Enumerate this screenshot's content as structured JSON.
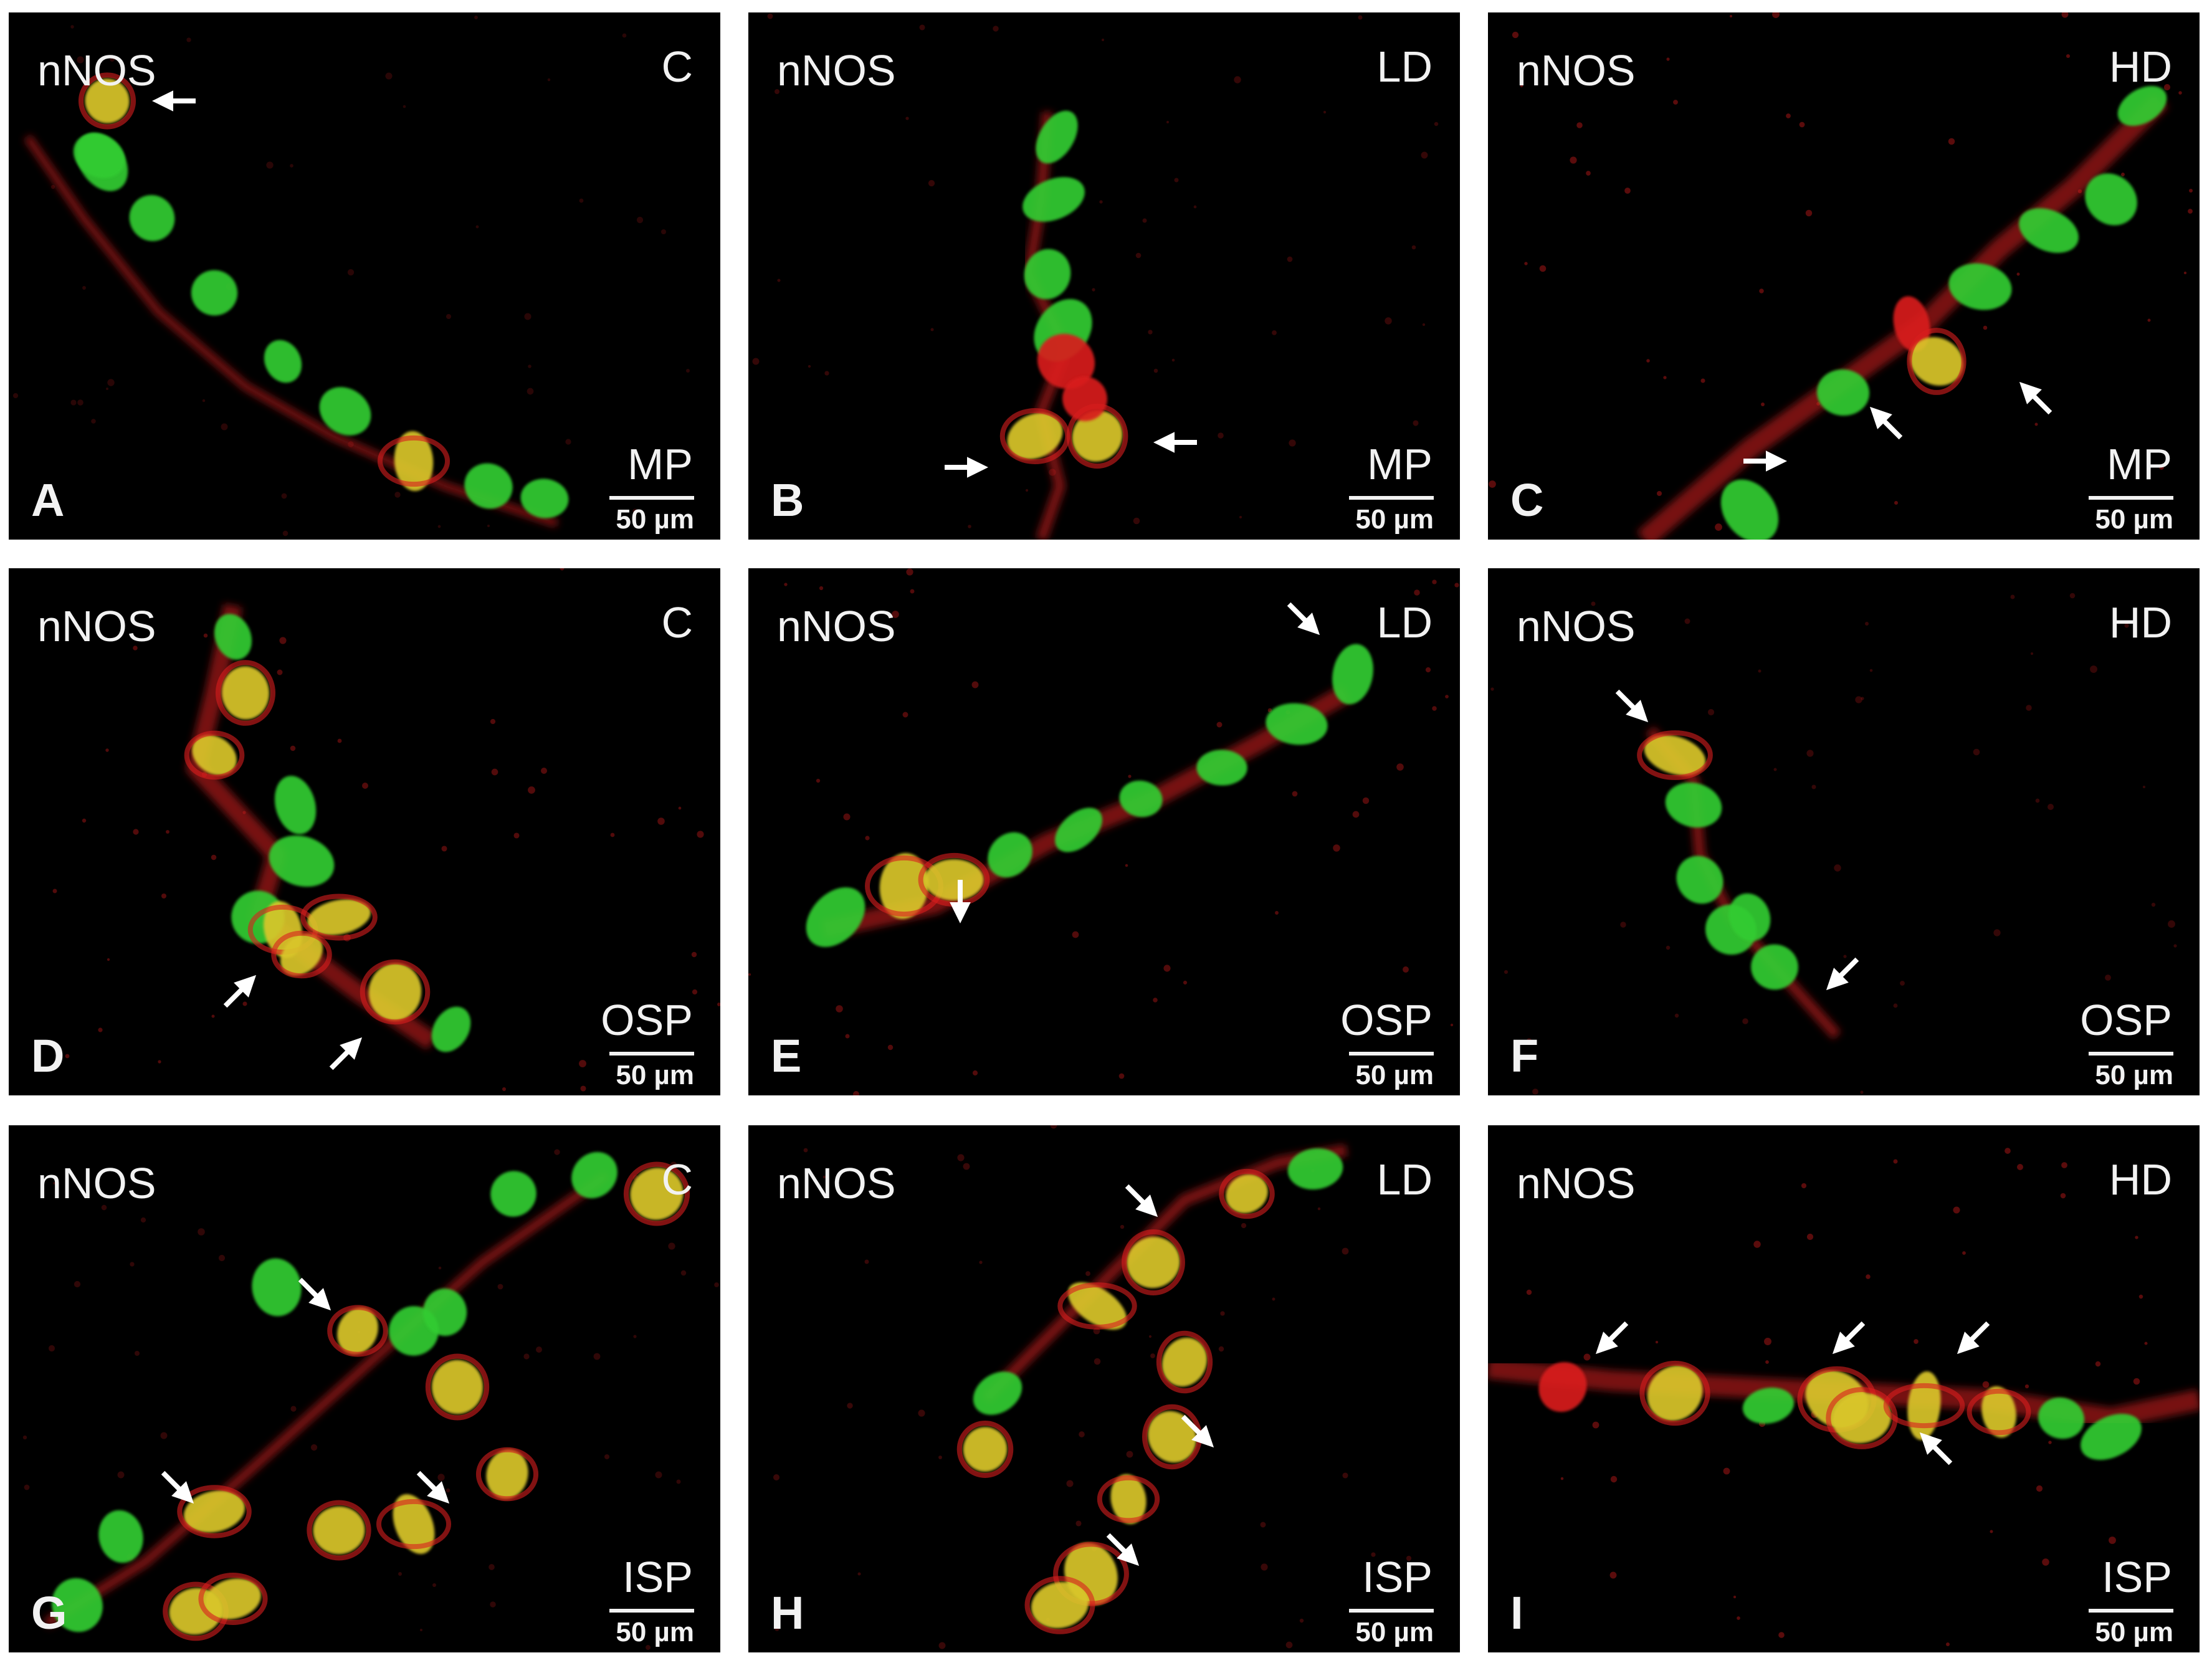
{
  "colors": {
    "background": "#000000",
    "nnos_green": "#33cc33",
    "tag_red": "#d81e1e",
    "merged_yellow": "#d9c62b",
    "label_text": "#f2f2f2"
  },
  "panels": [
    {
      "letter": "A",
      "marker": "nNOS",
      "group": "C",
      "region": "MP",
      "scale": "50 µm"
    },
    {
      "letter": "B",
      "marker": "nNOS",
      "group": "LD",
      "region": "MP",
      "scale": "50 µm"
    },
    {
      "letter": "C",
      "marker": "nNOS",
      "group": "HD",
      "region": "MP",
      "scale": "50 µm"
    },
    {
      "letter": "D",
      "marker": "nNOS",
      "group": "C",
      "region": "OSP",
      "scale": "50 µm"
    },
    {
      "letter": "E",
      "marker": "nNOS",
      "group": "LD",
      "region": "OSP",
      "scale": "50 µm"
    },
    {
      "letter": "F",
      "marker": "nNOS",
      "group": "HD",
      "region": "OSP",
      "scale": "50 µm"
    },
    {
      "letter": "G",
      "marker": "nNOS",
      "group": "C",
      "region": "ISP",
      "scale": "50 µm"
    },
    {
      "letter": "H",
      "marker": "nNOS",
      "group": "LD",
      "region": "ISP",
      "scale": "50 µm"
    },
    {
      "letter": "I",
      "marker": "nNOS",
      "group": "HD",
      "region": "ISP",
      "scale": "50 µm"
    }
  ]
}
